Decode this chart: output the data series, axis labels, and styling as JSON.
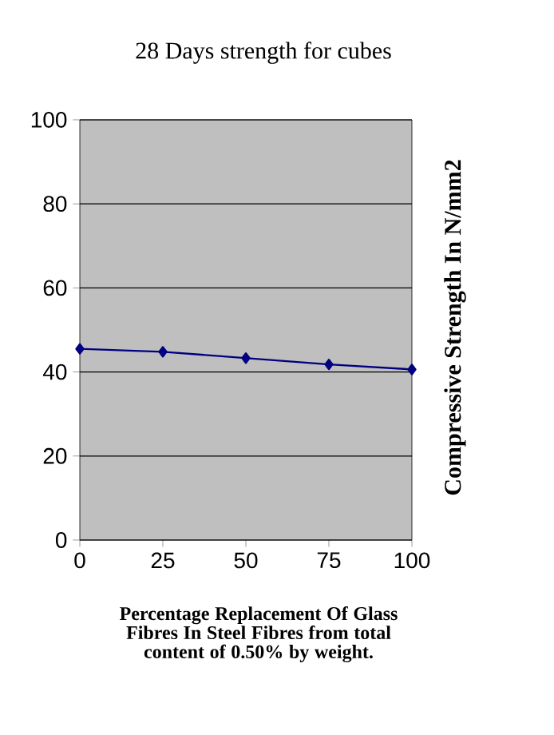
{
  "chart_data": {
    "type": "line",
    "title": "28 Days strength for cubes",
    "xlabel": "Percentage Replacement Of Glass Fibres In Steel Fibres from total content of 0.50% by weight.",
    "ylabel": "Compressive Strength In N/mm2",
    "x": [
      0,
      25,
      50,
      75,
      100
    ],
    "series": [
      {
        "color": "#000080",
        "values": [
          45.5,
          44.8,
          43.3,
          41.8,
          40.6
        ]
      }
    ],
    "xlim": [
      0,
      100
    ],
    "xticks": [
      0,
      25,
      50,
      75,
      100
    ],
    "ylim": [
      0,
      100
    ],
    "yticks": [
      0,
      20,
      40,
      60,
      80,
      100
    ],
    "grid": "y",
    "marker": "diamond",
    "line_style": "solid"
  }
}
